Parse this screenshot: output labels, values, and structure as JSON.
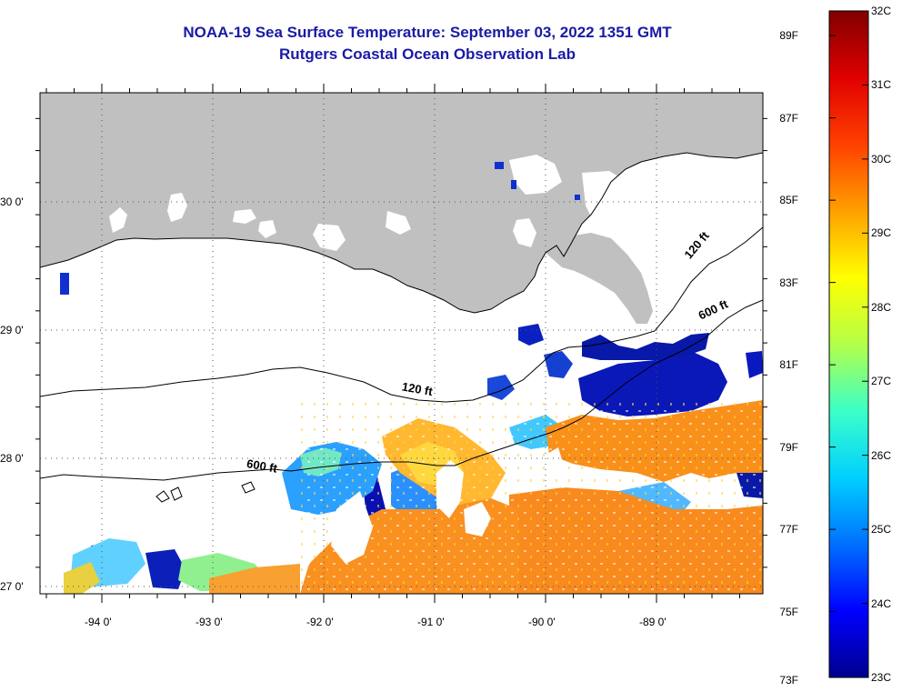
{
  "title": "NOAA-19 Sea Surface Temperature:  September 03, 2022 1351 GMT",
  "subtitle": "Rutgers Coastal Ocean Observation Lab",
  "lat_labels": [
    {
      "lat": 30,
      "label": "30 0'"
    },
    {
      "lat": 29,
      "label": "29 0'"
    },
    {
      "lat": 28,
      "label": "28 0'"
    },
    {
      "lat": 27,
      "label": "27 0'"
    }
  ],
  "lon_labels": [
    {
      "lon": -94,
      "label": "-94 0'"
    },
    {
      "lon": -93,
      "label": "-93 0'"
    },
    {
      "lon": -92,
      "label": "-92 0'"
    },
    {
      "lon": -91,
      "label": "-91 0'"
    },
    {
      "lon": -90,
      "label": "-90 0'"
    },
    {
      "lon": -89,
      "label": "-89 0'"
    }
  ],
  "contour_labels": [
    {
      "text": "120 ft",
      "lon": -91.3,
      "lat": 28.53,
      "angle": 10
    },
    {
      "text": "120 ft",
      "lon": -88.7,
      "lat": 29.55,
      "angle": -50
    },
    {
      "text": "600 ft",
      "lon": -92.7,
      "lat": 27.93,
      "angle": 10
    },
    {
      "text": "600 ft",
      "lon": -88.6,
      "lat": 29.08,
      "angle": -25
    }
  ],
  "colorbar": {
    "fahrenheit_labels": [
      "89F",
      "87F",
      "85F",
      "83F",
      "81F",
      "79F",
      "77F",
      "75F",
      "73F"
    ],
    "celsius_labels": [
      "32C",
      "31C",
      "30C",
      "29C",
      "28C",
      "27C",
      "26C",
      "25C",
      "24C",
      "23C"
    ],
    "min_c": 23,
    "max_c": 32,
    "colors": [
      "#00008f",
      "#0000ff",
      "#0070ff",
      "#00d0ff",
      "#3cffc8",
      "#b4ff48",
      "#ffff00",
      "#ffa000",
      "#ff4000",
      "#e00000",
      "#800000"
    ]
  },
  "colors": {
    "land": "#c0c0c0",
    "nodata": "#ffffff",
    "title": "#1a1aa6"
  }
}
